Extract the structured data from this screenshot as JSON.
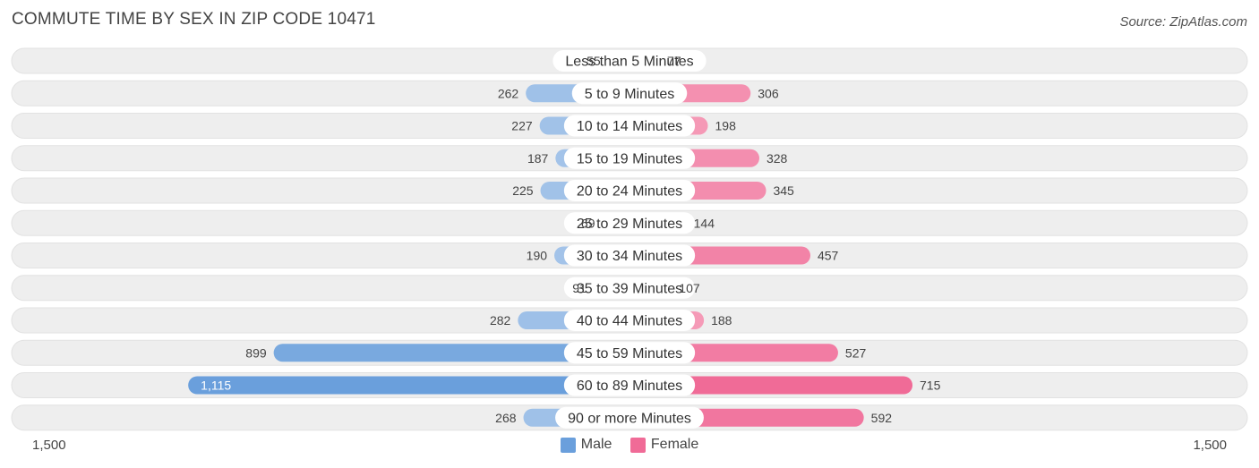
{
  "header": {
    "title": "COMMUTE TIME BY SEX IN ZIP CODE 10471",
    "source": "Source: ZipAtlas.com"
  },
  "axis": {
    "left_label": "1,500",
    "right_label": "1,500"
  },
  "legend": {
    "male_label": "Male",
    "female_label": "Female"
  },
  "colors": {
    "male_light": "#a9c7ea",
    "male_dark": "#6a9fdc",
    "female_light": "#f6a8c0",
    "female_dark": "#f06b97",
    "row_bg": "#eeeeee",
    "row_border": "#e2e2e2"
  },
  "chart_data": {
    "type": "bar",
    "orientation": "horizontal-diverging",
    "title": "COMMUTE TIME BY SEX IN ZIP CODE 10471",
    "xlim": [
      -1500,
      1500
    ],
    "categories": [
      "Less than 5 Minutes",
      "5 to 9 Minutes",
      "10 to 14 Minutes",
      "15 to 19 Minutes",
      "20 to 24 Minutes",
      "25 to 29 Minutes",
      "30 to 34 Minutes",
      "35 to 39 Minutes",
      "40 to 44 Minutes",
      "45 to 59 Minutes",
      "60 to 89 Minutes",
      "90 or more Minutes"
    ],
    "series": [
      {
        "name": "Male",
        "values": [
          55,
          262,
          227,
          187,
          225,
          69,
          190,
          91,
          282,
          899,
          1115,
          268
        ],
        "labels": [
          "55",
          "262",
          "227",
          "187",
          "225",
          "69",
          "190",
          "91",
          "282",
          "899",
          "1,115",
          "268"
        ]
      },
      {
        "name": "Female",
        "values": [
          77,
          306,
          198,
          328,
          345,
          144,
          457,
          107,
          188,
          527,
          715,
          592
        ],
        "labels": [
          "77",
          "306",
          "198",
          "328",
          "345",
          "144",
          "457",
          "107",
          "188",
          "527",
          "715",
          "592"
        ]
      }
    ],
    "legend_position": "bottom-center"
  }
}
